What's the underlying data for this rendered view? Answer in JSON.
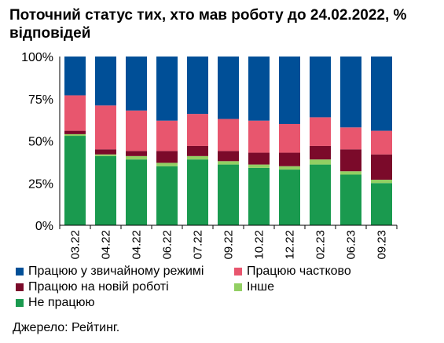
{
  "chart_data": {
    "type": "bar",
    "stacked": true,
    "title": "Поточний статус тих, хто мав роботу до 24.02.2022, % відповідей",
    "categories": [
      "03.22",
      "04.22",
      "04.22",
      "06.22",
      "07.22",
      "09.22",
      "10.22",
      "12.22",
      "02.23",
      "06.23",
      "09.23"
    ],
    "ylim": [
      0,
      100
    ],
    "yticks": [
      "0%",
      "25%",
      "50%",
      "75%",
      "100%"
    ],
    "series": [
      {
        "name": "Не працюю",
        "color": "#1a9a4f",
        "values": [
          53,
          41,
          39,
          35,
          39,
          36,
          34,
          33,
          36,
          30,
          25
        ]
      },
      {
        "name": "Інше",
        "color": "#92cf63",
        "values": [
          1,
          1,
          2,
          2,
          2,
          2,
          2,
          2,
          3,
          2,
          2
        ]
      },
      {
        "name": "Працюю на новій роботі",
        "color": "#7b0a2a",
        "values": [
          2,
          3,
          3,
          7,
          6,
          6,
          7,
          8,
          8,
          13,
          15
        ]
      },
      {
        "name": "Працюю частково",
        "color": "#e8566e",
        "values": [
          21,
          26,
          24,
          18,
          19,
          19,
          19,
          17,
          17,
          13,
          14
        ]
      },
      {
        "name": "Працюю у звичайному режимі",
        "color": "#004f97",
        "values": [
          23,
          29,
          32,
          38,
          34,
          37,
          38,
          40,
          36,
          42,
          44
        ]
      }
    ],
    "grid": false
  },
  "source": "Джерело: Рейтинг."
}
